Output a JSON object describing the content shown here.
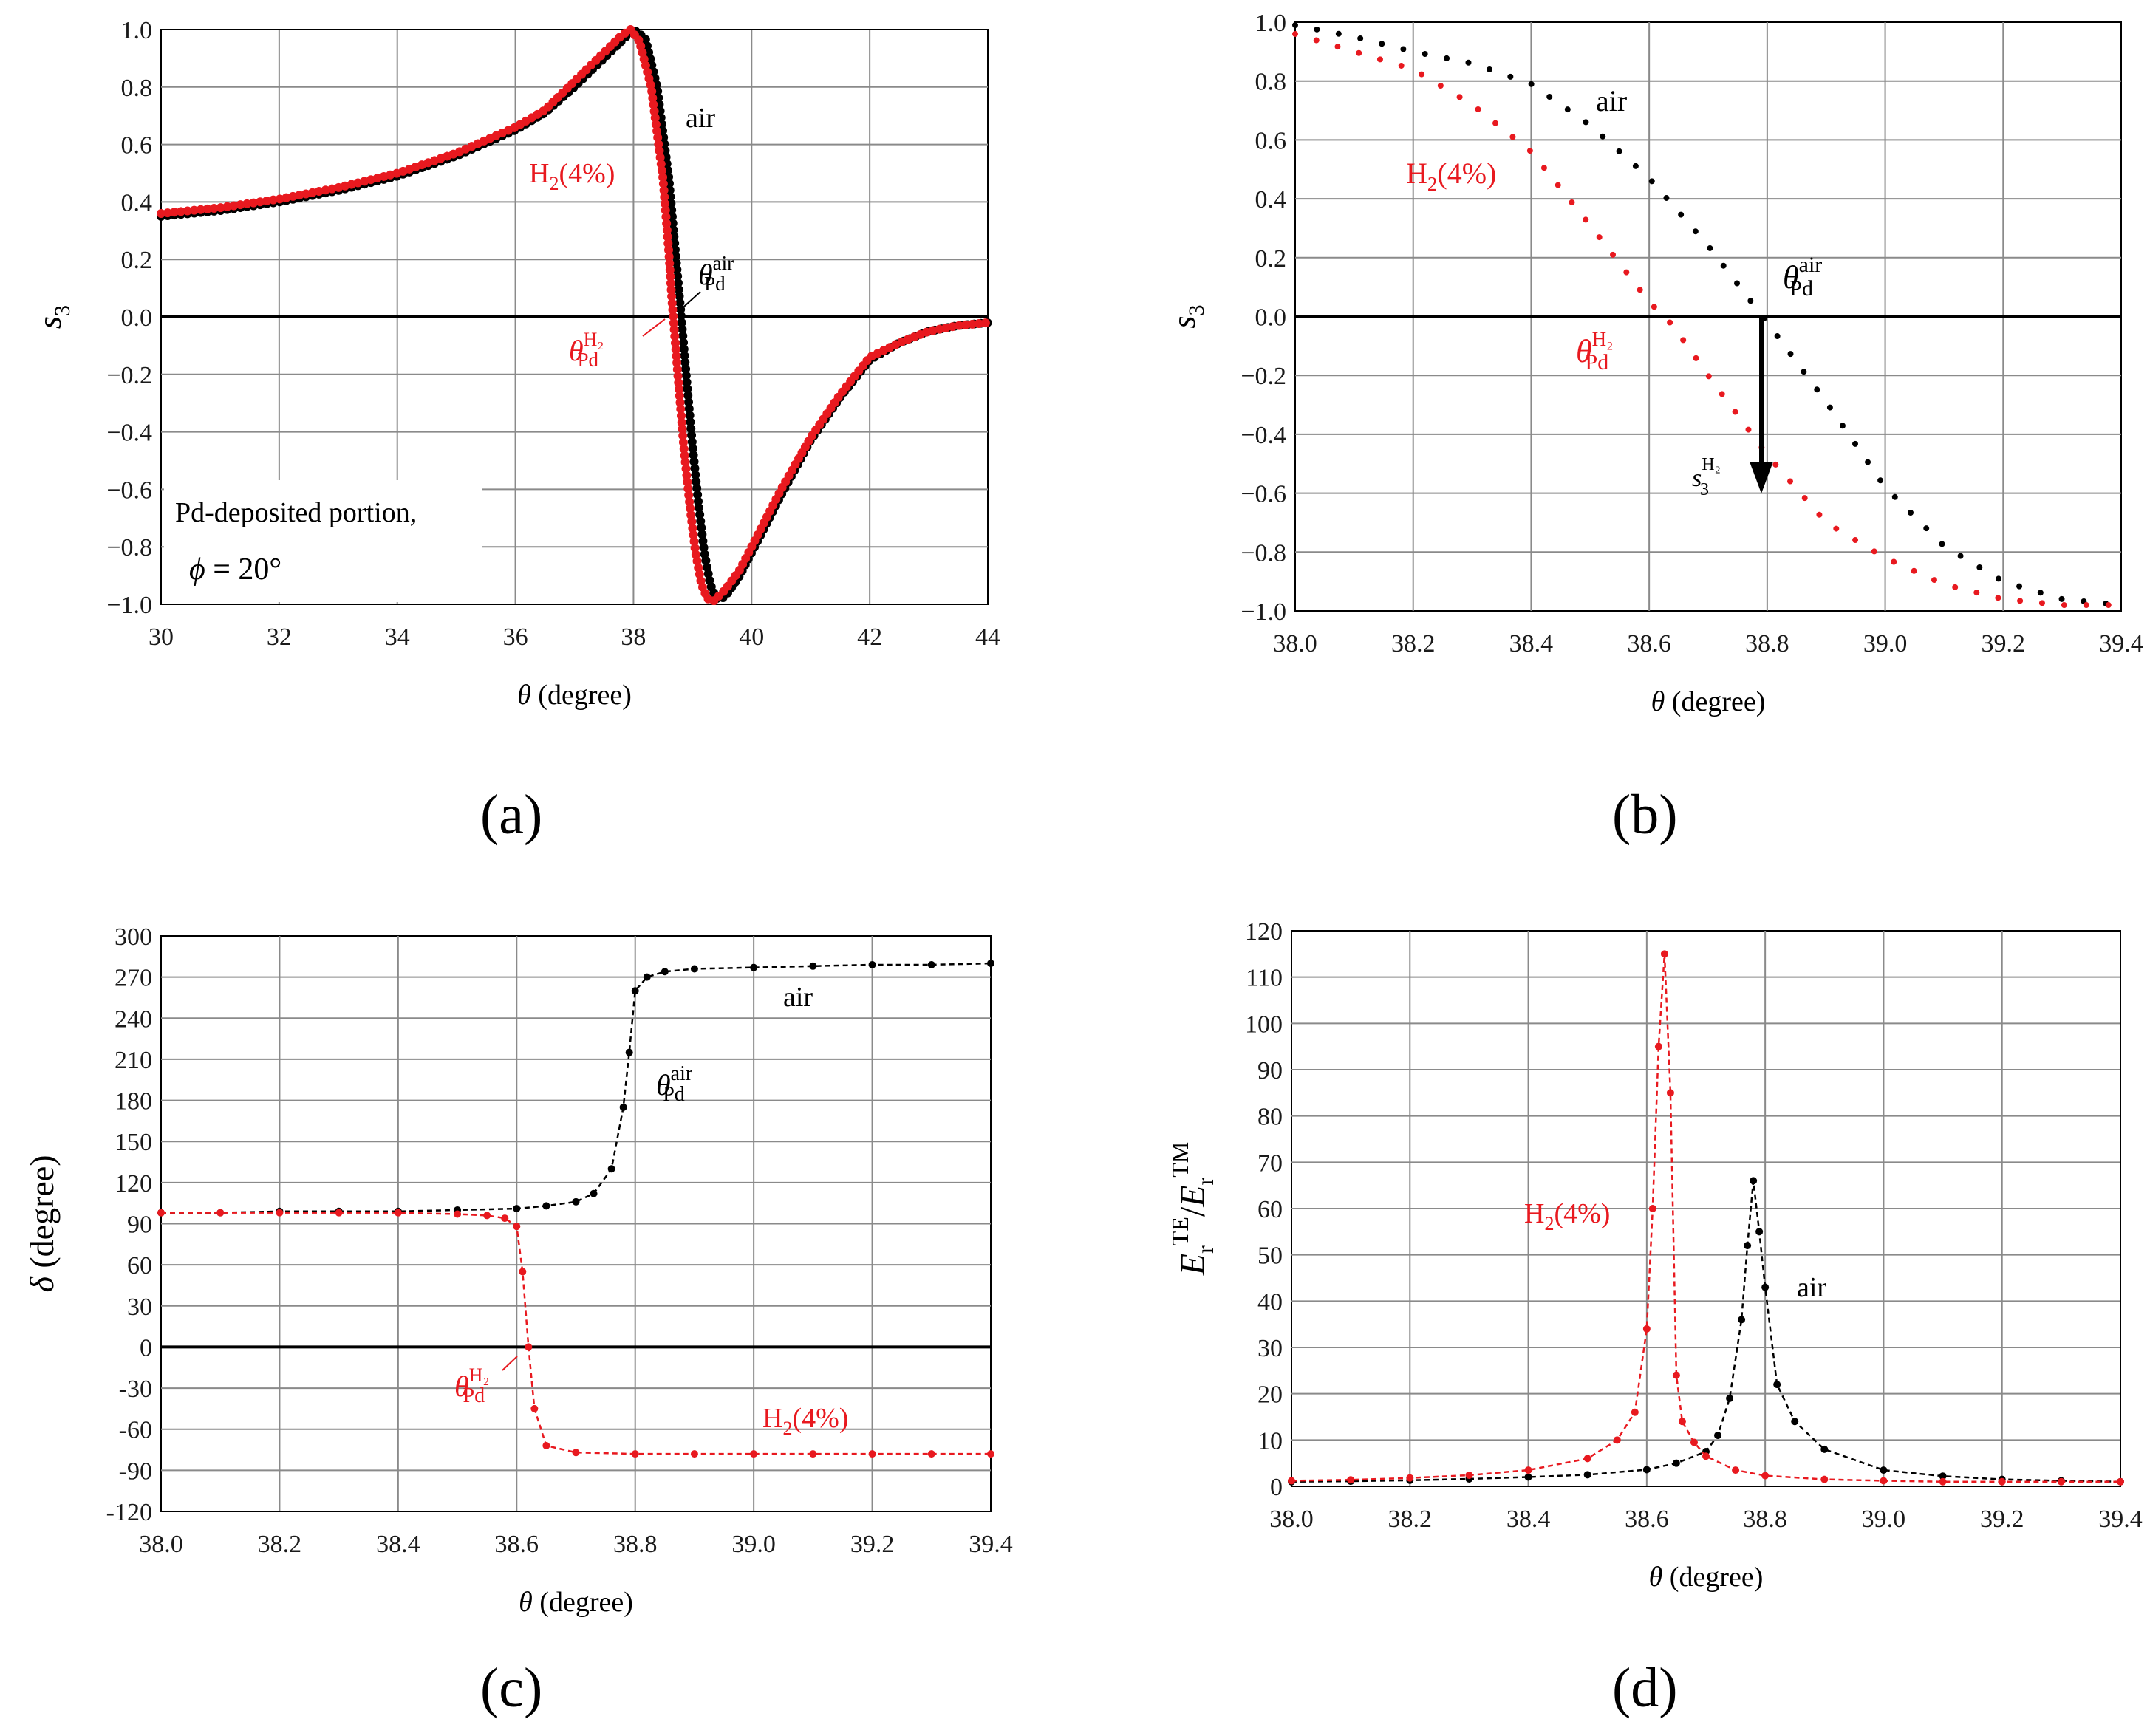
{
  "figure": {
    "panels": [
      {
        "id": "a",
        "label_text": "(a)"
      },
      {
        "id": "b",
        "label_text": "(b)"
      },
      {
        "id": "c",
        "label_text": "(c)"
      },
      {
        "id": "d",
        "label_text": "(d)"
      }
    ]
  },
  "colors": {
    "air": "#000000",
    "h2": "#e8191f",
    "grid": "#8a8a8a",
    "zero_line": "#000000"
  },
  "chart_data": [
    {
      "id": "a",
      "type": "scatter",
      "xlabel_italic": "θ",
      "xlabel_rest": " (degree)",
      "ylabel_italic": "s",
      "ylabel_sub": "3",
      "xlim": [
        30,
        44
      ],
      "ylim": [
        -1.0,
        1.0
      ],
      "xticks": [
        30,
        32,
        34,
        36,
        38,
        40,
        42,
        44
      ],
      "xtick_labels": [
        "30",
        "32",
        "34",
        "36",
        "38",
        "40",
        "42",
        "44"
      ],
      "yticks": [
        -1.0,
        -0.8,
        -0.6,
        -0.4,
        -0.2,
        0.0,
        0.2,
        0.4,
        0.6,
        0.8,
        1.0
      ],
      "ytick_labels": [
        "−1.0",
        "−0.8",
        "−0.6",
        "−0.4",
        "−0.2",
        "0.0",
        "0.2",
        "0.4",
        "0.6",
        "0.8",
        "1.0"
      ],
      "grid": true,
      "series": [
        {
          "name": "air",
          "color": "#000000",
          "x": [
            30,
            31,
            32,
            33,
            34,
            35,
            36,
            36.5,
            37,
            37.5,
            37.8,
            38.0,
            38.2,
            38.4,
            38.6,
            38.8,
            38.9,
            39.0,
            39.1,
            39.2,
            39.3,
            39.4,
            39.5,
            39.6,
            39.8,
            40,
            40.5,
            41,
            41.5,
            42,
            42.5,
            43,
            43.5,
            44
          ],
          "y": [
            0.35,
            0.37,
            0.4,
            0.44,
            0.49,
            0.56,
            0.65,
            0.71,
            0.8,
            0.9,
            0.96,
            1.0,
            0.97,
            0.8,
            0.48,
            0.02,
            -0.22,
            -0.45,
            -0.65,
            -0.82,
            -0.93,
            -0.98,
            -0.98,
            -0.96,
            -0.9,
            -0.82,
            -0.62,
            -0.43,
            -0.28,
            -0.15,
            -0.09,
            -0.05,
            -0.03,
            -0.02
          ]
        },
        {
          "name": "H2(4%)",
          "color": "#e8191f",
          "x": [
            30,
            31,
            32,
            33,
            34,
            35,
            36,
            36.5,
            37,
            37.5,
            37.8,
            37.95,
            38.1,
            38.3,
            38.5,
            38.6,
            38.65,
            38.75,
            38.85,
            38.95,
            39.05,
            39.15,
            39.25,
            39.35,
            39.45,
            39.55,
            39.8,
            40,
            40.5,
            41,
            41.5,
            42,
            42.5,
            43,
            43.5,
            44
          ],
          "y": [
            0.36,
            0.38,
            0.41,
            0.45,
            0.5,
            0.57,
            0.66,
            0.72,
            0.82,
            0.92,
            0.98,
            1.0,
            0.96,
            0.8,
            0.48,
            0.22,
            0.06,
            -0.2,
            -0.45,
            -0.65,
            -0.82,
            -0.93,
            -0.98,
            -0.99,
            -0.97,
            -0.95,
            -0.88,
            -0.8,
            -0.6,
            -0.42,
            -0.27,
            -0.14,
            -0.09,
            -0.05,
            -0.03,
            -0.02
          ]
        }
      ],
      "annotations": {
        "air": "air",
        "h2_main": "H",
        "h2_sub": "2",
        "h2_tail": "(4%)",
        "theta_air": "θ",
        "theta_air_sup": "air",
        "theta_air_sub": "Pd",
        "theta_h2": "θ",
        "theta_h2_sup": "H₂",
        "theta_h2_sub": "Pd",
        "box_line1": "Pd-deposited portion,",
        "box_line2_italic": "ϕ",
        "box_line2_rest": " = 20°"
      }
    },
    {
      "id": "b",
      "type": "scatter",
      "xlabel_italic": "θ",
      "xlabel_rest": " (degree)",
      "ylabel_italic": "s",
      "ylabel_sub": "3",
      "xlim": [
        38.0,
        39.4
      ],
      "ylim": [
        -1.0,
        1.0
      ],
      "xticks": [
        38.0,
        38.2,
        38.4,
        38.6,
        38.8,
        39.0,
        39.2,
        39.4
      ],
      "xtick_labels": [
        "38.0",
        "38.2",
        "38.4",
        "38.6",
        "38.8",
        "39.0",
        "39.2",
        "39.4"
      ],
      "yticks": [
        -1.0,
        -0.8,
        -0.6,
        -0.4,
        -0.2,
        0.0,
        0.2,
        0.4,
        0.6,
        0.8,
        1.0
      ],
      "ytick_labels": [
        "−1.0",
        "−0.8",
        "−0.6",
        "−0.4",
        "−0.2",
        "0.0",
        "0.2",
        "0.4",
        "0.6",
        "0.8",
        "1.0"
      ],
      "grid": true,
      "series": [
        {
          "name": "air",
          "color": "#000000",
          "x": [
            38.0,
            38.1,
            38.2,
            38.3,
            38.4,
            38.5,
            38.6,
            38.7,
            38.8,
            38.9,
            39.0,
            39.1,
            39.2,
            39.3,
            39.4
          ],
          "y": [
            0.99,
            0.95,
            0.9,
            0.86,
            0.79,
            0.65,
            0.47,
            0.24,
            -0.02,
            -0.29,
            -0.58,
            -0.78,
            -0.9,
            -0.96,
            -0.98
          ]
        },
        {
          "name": "H2(4%)",
          "color": "#e8191f",
          "x": [
            38.0,
            38.1,
            38.2,
            38.3,
            38.4,
            38.5,
            38.6,
            38.64,
            38.7,
            38.8,
            38.9,
            39.0,
            39.1,
            39.2,
            39.3,
            39.4
          ],
          "y": [
            0.96,
            0.9,
            0.84,
            0.72,
            0.56,
            0.31,
            0.05,
            -0.03,
            -0.2,
            -0.47,
            -0.7,
            -0.82,
            -0.91,
            -0.96,
            -0.98,
            -0.98
          ]
        }
      ],
      "annotations": {
        "air": "air",
        "h2_main": "H",
        "h2_sub": "2",
        "h2_tail": "(4%)",
        "theta_air": "θ",
        "theta_air_sup": "air",
        "theta_air_sub": "Pd",
        "theta_h2": "θ",
        "theta_h2_sup": "H₂",
        "theta_h2_sub": "Pd",
        "s3_main": "s",
        "s3_sub": "3",
        "s3_sup": "H₂"
      }
    },
    {
      "id": "c",
      "type": "line",
      "xlabel_italic": "θ",
      "xlabel_rest": " (degree)",
      "ylabel_italic": "δ",
      "ylabel_rest": " (degree)",
      "xlim": [
        38.0,
        39.4
      ],
      "ylim": [
        -120,
        300
      ],
      "xticks": [
        38.0,
        38.2,
        38.4,
        38.6,
        38.8,
        39.0,
        39.2,
        39.4
      ],
      "xtick_labels": [
        "38.0",
        "38.2",
        "38.4",
        "38.6",
        "38.8",
        "39.0",
        "39.2",
        "39.4"
      ],
      "yticks": [
        -120,
        -90,
        -60,
        -30,
        0,
        30,
        60,
        90,
        120,
        150,
        180,
        210,
        240,
        270,
        300
      ],
      "ytick_labels": [
        "-120",
        "-90",
        "-60",
        "-30",
        "0",
        "30",
        "60",
        "90",
        "120",
        "150",
        "180",
        "210",
        "240",
        "270",
        "300"
      ],
      "grid": true,
      "series": [
        {
          "name": "air",
          "color": "#000000",
          "x": [
            38.0,
            38.1,
            38.2,
            38.3,
            38.4,
            38.5,
            38.6,
            38.65,
            38.7,
            38.73,
            38.76,
            38.78,
            38.79,
            38.8,
            38.82,
            38.85,
            38.9,
            39.0,
            39.1,
            39.2,
            39.3,
            39.4
          ],
          "y": [
            98,
            98,
            99,
            99,
            99,
            100,
            101,
            103,
            106,
            112,
            130,
            175,
            215,
            260,
            270,
            274,
            276,
            277,
            278,
            279,
            279,
            280
          ]
        },
        {
          "name": "H2(4%)",
          "color": "#e8191f",
          "x": [
            38.0,
            38.1,
            38.2,
            38.3,
            38.4,
            38.5,
            38.55,
            38.58,
            38.6,
            38.61,
            38.62,
            38.63,
            38.65,
            38.7,
            38.8,
            38.9,
            39.0,
            39.1,
            39.2,
            39.3,
            39.4
          ],
          "y": [
            98,
            98,
            98,
            98,
            98,
            97,
            96,
            94,
            88,
            55,
            0,
            -45,
            -72,
            -77,
            -78,
            -78,
            -78,
            -78,
            -78,
            -78,
            -78
          ]
        }
      ],
      "annotations": {
        "air": "air",
        "h2_main": "H",
        "h2_sub": "2",
        "h2_tail": "(4%)",
        "theta_air": "θ",
        "theta_air_sup": "air",
        "theta_air_sub": "Pd",
        "theta_h2": "θ",
        "theta_h2_sup": "H₂",
        "theta_h2_sub": "Pd"
      }
    },
    {
      "id": "d",
      "type": "line",
      "xlabel_italic": "θ",
      "xlabel_rest": " (degree)",
      "ylabel_E1": "E",
      "ylabel_r1": "r",
      "ylabel_TE": "TE",
      "ylabel_slash": "/",
      "ylabel_E2": "E",
      "ylabel_r2": "r",
      "ylabel_TM": "TM",
      "xlim": [
        38.0,
        39.4
      ],
      "ylim": [
        0,
        120
      ],
      "xticks": [
        38.0,
        38.2,
        38.4,
        38.6,
        38.8,
        39.0,
        39.2,
        39.4
      ],
      "xtick_labels": [
        "38.0",
        "38.2",
        "38.4",
        "38.6",
        "38.8",
        "39.0",
        "39.2",
        "39.4"
      ],
      "yticks": [
        0,
        10,
        20,
        30,
        40,
        50,
        60,
        70,
        80,
        90,
        100,
        110,
        120
      ],
      "ytick_labels": [
        "0",
        "10",
        "20",
        "30",
        "40",
        "50",
        "60",
        "70",
        "80",
        "90",
        "100",
        "110",
        "120"
      ],
      "grid": true,
      "series": [
        {
          "name": "air",
          "color": "#000000",
          "x": [
            38.0,
            38.1,
            38.2,
            38.3,
            38.4,
            38.5,
            38.6,
            38.65,
            38.7,
            38.72,
            38.74,
            38.76,
            38.77,
            38.78,
            38.79,
            38.8,
            38.82,
            38.85,
            38.9,
            39.0,
            39.1,
            39.2,
            39.3,
            39.4
          ],
          "y": [
            1.0,
            1.1,
            1.3,
            1.6,
            2.0,
            2.5,
            3.6,
            5.0,
            7.5,
            11,
            19,
            36,
            52,
            66,
            55,
            43,
            22,
            14,
            8,
            3.5,
            2.2,
            1.5,
            1.2,
            1.0
          ]
        },
        {
          "name": "H2(4%)",
          "color": "#e8191f",
          "x": [
            38.0,
            38.1,
            38.2,
            38.3,
            38.4,
            38.5,
            38.55,
            38.58,
            38.6,
            38.61,
            38.62,
            38.63,
            38.64,
            38.65,
            38.66,
            38.68,
            38.7,
            38.75,
            38.8,
            38.9,
            39.0,
            39.1,
            39.2,
            39.3,
            39.4
          ],
          "y": [
            1.2,
            1.4,
            1.8,
            2.4,
            3.5,
            6.0,
            10,
            16,
            34,
            60,
            95,
            115,
            85,
            24,
            14,
            9.5,
            6.5,
            3.5,
            2.3,
            1.5,
            1.2,
            1.0,
            1.0,
            1.0,
            1.0
          ]
        }
      ],
      "annotations": {
        "air": "air",
        "h2_main": "H",
        "h2_sub": "2",
        "h2_tail": "(4%)"
      }
    }
  ]
}
